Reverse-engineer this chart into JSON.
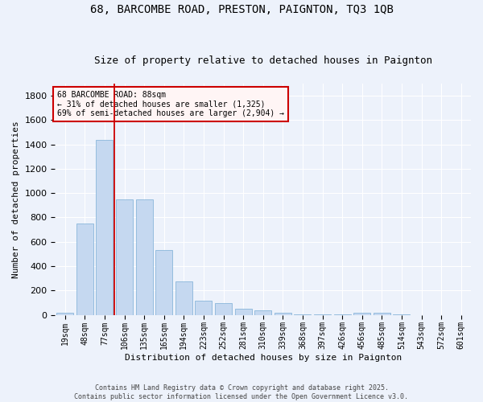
{
  "title": "68, BARCOMBE ROAD, PRESTON, PAIGNTON, TQ3 1QB",
  "subtitle": "Size of property relative to detached houses in Paignton",
  "xlabel": "Distribution of detached houses by size in Paignton",
  "ylabel": "Number of detached properties",
  "categories": [
    "19sqm",
    "48sqm",
    "77sqm",
    "106sqm",
    "135sqm",
    "165sqm",
    "194sqm",
    "223sqm",
    "252sqm",
    "281sqm",
    "310sqm",
    "339sqm",
    "368sqm",
    "397sqm",
    "426sqm",
    "456sqm",
    "485sqm",
    "514sqm",
    "543sqm",
    "572sqm",
    "601sqm"
  ],
  "values": [
    20,
    750,
    1440,
    950,
    950,
    535,
    275,
    115,
    95,
    50,
    35,
    20,
    5,
    5,
    5,
    15,
    15,
    5,
    0,
    0,
    0
  ],
  "bar_color": "#c5d8f0",
  "bar_edge_color": "#7aadd4",
  "background_color": "#edf2fb",
  "grid_color": "#ffffff",
  "vline_color": "#cc0000",
  "vline_x_index": 2,
  "annotation_text": "68 BARCOMBE ROAD: 88sqm\n← 31% of detached houses are smaller (1,325)\n69% of semi-detached houses are larger (2,904) →",
  "annotation_box_facecolor": "#fff5f5",
  "annotation_edge_color": "#cc0000",
  "footer": "Contains HM Land Registry data © Crown copyright and database right 2025.\nContains public sector information licensed under the Open Government Licence v3.0.",
  "ylim": [
    0,
    1900
  ],
  "yticks": [
    0,
    200,
    400,
    600,
    800,
    1000,
    1200,
    1400,
    1600,
    1800
  ],
  "title_fontsize": 10,
  "subtitle_fontsize": 9,
  "tick_fontsize": 7,
  "ylabel_fontsize": 8,
  "xlabel_fontsize": 8,
  "annotation_fontsize": 7,
  "footer_fontsize": 6
}
